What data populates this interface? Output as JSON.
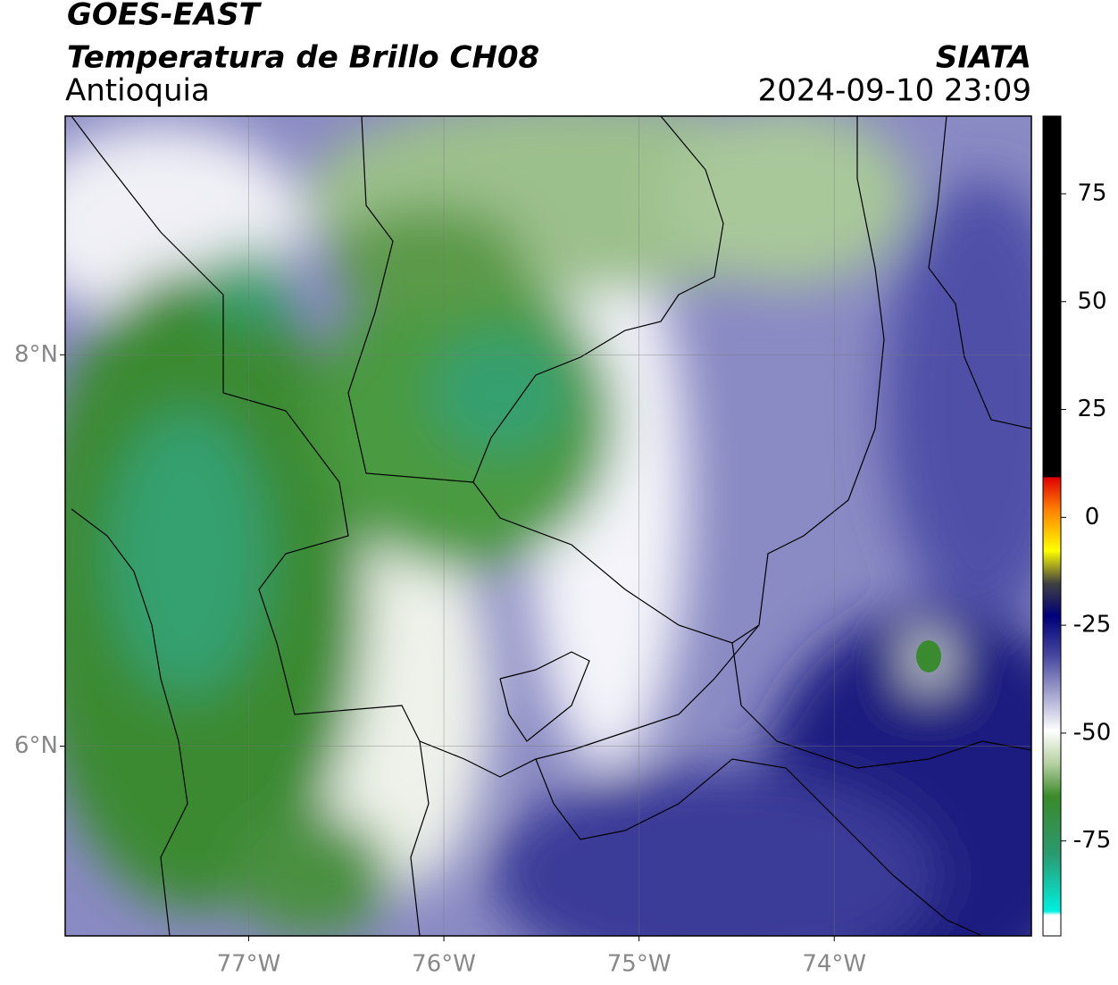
{
  "header": {
    "title": "GOES-EAST",
    "subtitle": "Temperatura de Brillo CH08",
    "region": "Antioquia",
    "source": "SIATA",
    "datetime": "2024-09-10 23:09"
  },
  "map": {
    "xlim": [
      -77.94,
      -72.99
    ],
    "ylim": [
      5.03,
      9.22
    ],
    "xticks": [
      {
        "value": -77,
        "label": "77°W"
      },
      {
        "value": -76,
        "label": "76°W"
      },
      {
        "value": -75,
        "label": "75°W"
      },
      {
        "value": -74,
        "label": "74°W"
      }
    ],
    "yticks": [
      {
        "value": 6,
        "label": "6°N"
      },
      {
        "value": 8,
        "label": "8°N"
      }
    ],
    "grid": true
  },
  "colorbar": {
    "range": [
      -97,
      93
    ],
    "ticks": [
      75,
      50,
      25,
      0,
      -25,
      -50,
      -75
    ]
  }
}
